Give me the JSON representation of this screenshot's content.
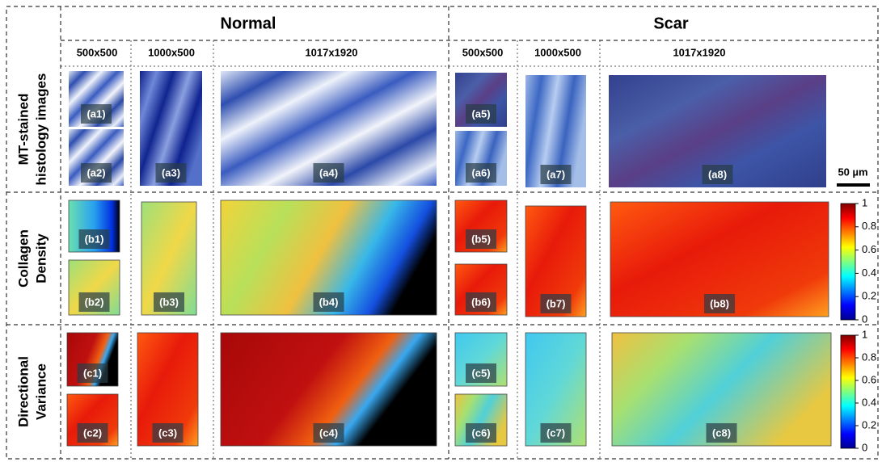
{
  "header": {
    "groups": [
      "Normal",
      "Scar"
    ],
    "sizes": [
      "500x500",
      "1000x500",
      "1017x1920",
      "500x500",
      "1000x500",
      "1017x1920"
    ]
  },
  "rows": [
    {
      "label": [
        "MT-stained",
        "histology images"
      ],
      "panels": [
        "(a1)",
        "(a2)",
        "(a3)",
        "(a4)",
        "(a5)",
        "(a6)",
        "(a7)",
        "(a8)"
      ]
    },
    {
      "label": [
        "Collagen",
        "Density"
      ],
      "panels": [
        "(b1)",
        "(b2)",
        "(b3)",
        "(b4)",
        "(b5)",
        "(b6)",
        "(b7)",
        "(b8)"
      ]
    },
    {
      "label": [
        "Directional",
        "Variance"
      ],
      "panels": [
        "(c1)",
        "(c2)",
        "(c3)",
        "(c4)",
        "(c5)",
        "(c6)",
        "(c7)",
        "(c8)"
      ]
    }
  ],
  "scale_bar": "50 µm",
  "colorbars": [
    {
      "ticks": [
        0,
        0.2,
        0.4,
        0.6,
        0.8,
        1
      ]
    },
    {
      "ticks": [
        0,
        0.2,
        0.4,
        0.6,
        0.8,
        1
      ]
    }
  ]
}
